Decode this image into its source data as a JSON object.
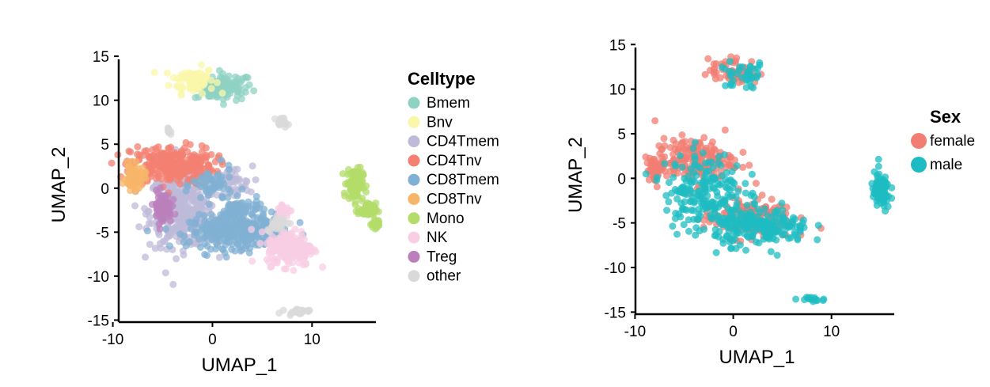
{
  "chart_data": [
    {
      "type": "scatter",
      "xlabel": "UMAP_1",
      "ylabel": "UMAP_2",
      "xlim": [
        -11,
        18
      ],
      "ylim": [
        -15.5,
        16
      ],
      "x_ticks": [
        -10,
        0,
        10
      ],
      "y_ticks": [
        15,
        10,
        5,
        0,
        -5,
        -10,
        -15
      ],
      "grid": false,
      "legend_position": "right",
      "legend_title": "Celltype",
      "series": [
        {
          "name": "Bmem",
          "color": "#8FD1C3",
          "clusters": [
            [
              1.5,
              11.5,
              2.5,
              1.5,
              80
            ],
            [
              0.0,
              11.2,
              1.8,
              1.2,
              40
            ]
          ]
        },
        {
          "name": "Bnv",
          "color": "#FBF7A9",
          "clusters": [
            [
              -2.0,
              12.3,
              2.2,
              1.5,
              80
            ]
          ]
        },
        {
          "name": "CD4Tmem",
          "color": "#BEBAD9",
          "clusters": [
            [
              -3.0,
              -2.5,
              3.3,
              4.2,
              360
            ],
            [
              2.0,
              0.5,
              2.0,
              2.0,
              40
            ]
          ]
        },
        {
          "name": "CD4Tnv",
          "color": "#F38072",
          "clusters": [
            [
              -4.0,
              2.6,
              4.2,
              2.2,
              280
            ]
          ]
        },
        {
          "name": "CD8Tmem",
          "color": "#80B0D3",
          "clusters": [
            [
              2.5,
              -5.0,
              4.8,
              1.8,
              320
            ],
            [
              3.0,
              -2.5,
              2.5,
              1.2,
              70
            ],
            [
              0.0,
              0.3,
              2.0,
              2.0,
              60
            ]
          ]
        },
        {
          "name": "CD8Tnv",
          "color": "#F7B56A",
          "clusters": [
            [
              -7.8,
              1.2,
              1.0,
              1.4,
              80
            ]
          ]
        },
        {
          "name": "Mono",
          "color": "#B3DC69",
          "clusters": [
            [
              14.3,
              0.5,
              0.8,
              1.8,
              120
            ],
            [
              15.5,
              -2.5,
              0.9,
              0.8,
              60
            ],
            [
              16.5,
              -4.1,
              0.5,
              0.5,
              30
            ]
          ]
        },
        {
          "name": "NK",
          "color": "#F8CEE4",
          "clusters": [
            [
              7.8,
              -6.8,
              2.3,
              2.0,
              200
            ],
            [
              7.2,
              -2.5,
              0.8,
              0.8,
              30
            ]
          ]
        },
        {
          "name": "Treg",
          "color": "#BB80BC",
          "clusters": [
            [
              -5.0,
              -2.2,
              0.9,
              1.8,
              80
            ]
          ]
        },
        {
          "name": "other",
          "color": "#D9D9D9",
          "clusters": [
            [
              6.5,
              -4.0,
              1.0,
              0.8,
              30
            ],
            [
              8.5,
              -14.0,
              1.3,
              0.3,
              25
            ],
            [
              7.0,
              7.5,
              0.6,
              0.5,
              20
            ],
            [
              -4.3,
              6.5,
              0.2,
              0.5,
              8
            ]
          ]
        }
      ]
    },
    {
      "type": "scatter",
      "xlabel": "UMAP_1",
      "ylabel": "UMAP_2",
      "xlim": [
        -11,
        18
      ],
      "ylim": [
        -15.5,
        16
      ],
      "x_ticks": [
        -10,
        0,
        10
      ],
      "y_ticks": [
        15,
        10,
        5,
        0,
        -5,
        -10,
        -15
      ],
      "grid": false,
      "legend_position": "right",
      "legend_title": "Sex",
      "series": [
        {
          "name": "female",
          "color": "#F27E73",
          "clusters": [
            [
              -4.0,
              2.0,
              4.0,
              2.5,
              180
            ],
            [
              1.5,
              -4.5,
              4.5,
              2.2,
              160
            ],
            [
              0.0,
              12.0,
              2.6,
              1.5,
              60
            ],
            [
              -7.8,
              1.2,
              1.0,
              1.4,
              40
            ]
          ]
        },
        {
          "name": "male",
          "color": "#1DBCC2",
          "clusters": [
            [
              -3.0,
              -1.5,
              4.0,
              4.5,
              200
            ],
            [
              3.0,
              -5.5,
              4.8,
              2.0,
              200
            ],
            [
              15.0,
              -1.5,
              1.0,
              2.2,
              80
            ],
            [
              1.0,
              11.5,
              2.5,
              1.5,
              40
            ],
            [
              8.0,
              -13.5,
              1.3,
              0.3,
              15
            ]
          ]
        }
      ]
    }
  ]
}
